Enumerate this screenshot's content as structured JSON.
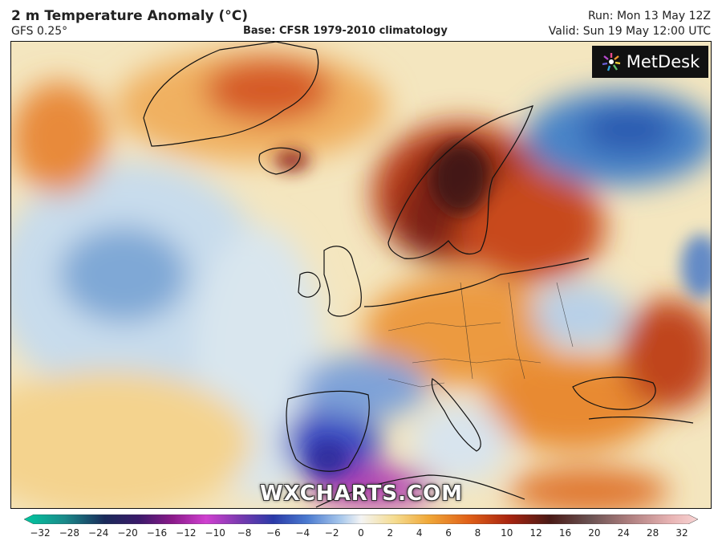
{
  "header": {
    "title": "2 m Temperature Anomaly (°C)",
    "model": "GFS 0.25°",
    "base": "Base: CFSR 1979-2010 climatology",
    "run": "Run: Mon 13 May 12Z",
    "valid": "Valid: Sun 19 May 12:00 UTC"
  },
  "map": {
    "logo_text": "MetDesk",
    "watermark": "WXCHARTS.COM"
  },
  "colorbar": {
    "ticks": [
      "−32",
      "−28",
      "−24",
      "−20",
      "−16",
      "−12",
      "−10",
      "−8",
      "−6",
      "−4",
      "−2",
      "0",
      "2",
      "4",
      "6",
      "8",
      "10",
      "12",
      "16",
      "20",
      "24",
      "28",
      "32"
    ],
    "colors": [
      "#00c8a0",
      "#2a8a8a",
      "#1a3a6a",
      "#3a1a6a",
      "#8a1a8a",
      "#c030c0",
      "#e050e0",
      "#5a2a9a",
      "#2a3ab0",
      "#3a6ad0",
      "#8ab8e8",
      "#f0f0f0",
      "#f5dc90",
      "#f0b040",
      "#e87020",
      "#c83a10",
      "#8a1a10",
      "#5a1a1a",
      "#6a5050",
      "#a07070",
      "#c89090",
      "#e8b0b0",
      "#f8d0d0"
    ]
  }
}
